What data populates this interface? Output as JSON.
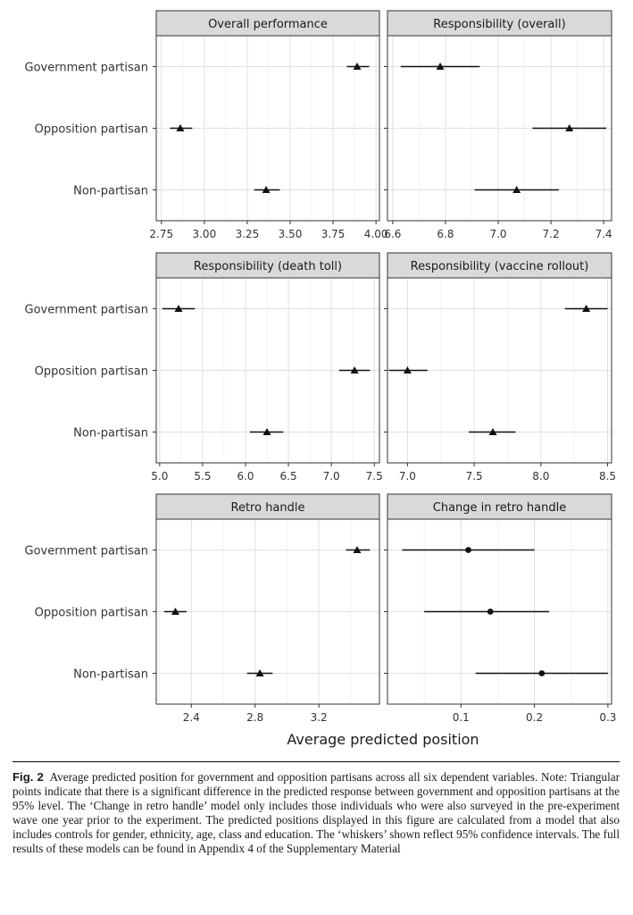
{
  "chart_data": {
    "type": "dotplot",
    "categories": [
      "Government partisan",
      "Opposition partisan",
      "Non-partisan"
    ],
    "x_axis_title": "Average predicted position",
    "marker_legend": {
      "triangle": "significant difference at 95% level",
      "circle": "not significant"
    },
    "facets": [
      {
        "title": "Overall performance",
        "xlim": [
          2.72,
          4.02
        ],
        "ticks": [
          2.75,
          3.0,
          3.25,
          3.5,
          3.75,
          4.0
        ],
        "tick_labels": [
          "2.75",
          "3.00",
          "3.25",
          "3.50",
          "3.75",
          "4.00"
        ],
        "points": [
          {
            "category": "Government partisan",
            "estimate": 3.89,
            "lower": 3.83,
            "upper": 3.96,
            "marker": "triangle"
          },
          {
            "category": "Opposition partisan",
            "estimate": 2.86,
            "lower": 2.8,
            "upper": 2.93,
            "marker": "triangle"
          },
          {
            "category": "Non-partisan",
            "estimate": 3.36,
            "lower": 3.29,
            "upper": 3.44,
            "marker": "triangle"
          }
        ]
      },
      {
        "title": "Responsibility (overall)",
        "xlim": [
          6.58,
          7.43
        ],
        "ticks": [
          6.6,
          6.8,
          7.0,
          7.2,
          7.4
        ],
        "tick_labels": [
          "6.6",
          "6.8",
          "7.0",
          "7.2",
          "7.4"
        ],
        "points": [
          {
            "category": "Government partisan",
            "estimate": 6.78,
            "lower": 6.63,
            "upper": 6.93,
            "marker": "triangle"
          },
          {
            "category": "Opposition partisan",
            "estimate": 7.27,
            "lower": 7.13,
            "upper": 7.41,
            "marker": "triangle"
          },
          {
            "category": "Non-partisan",
            "estimate": 7.07,
            "lower": 6.91,
            "upper": 7.23,
            "marker": "triangle"
          }
        ]
      },
      {
        "title": "Responsibility (death toll)",
        "xlim": [
          4.96,
          7.56
        ],
        "ticks": [
          5.0,
          5.5,
          6.0,
          6.5,
          7.0,
          7.5
        ],
        "tick_labels": [
          "5.0",
          "5.5",
          "6.0",
          "6.5",
          "7.0",
          "7.5"
        ],
        "points": [
          {
            "category": "Government partisan",
            "estimate": 5.22,
            "lower": 5.03,
            "upper": 5.41,
            "marker": "triangle"
          },
          {
            "category": "Opposition partisan",
            "estimate": 7.27,
            "lower": 7.09,
            "upper": 7.45,
            "marker": "triangle"
          },
          {
            "category": "Non-partisan",
            "estimate": 6.25,
            "lower": 6.05,
            "upper": 6.44,
            "marker": "triangle"
          }
        ]
      },
      {
        "title": "Responsibility (vaccine rollout)",
        "xlim": [
          6.85,
          8.53
        ],
        "ticks": [
          7.0,
          7.5,
          8.0,
          8.5
        ],
        "tick_labels": [
          "7.0",
          "7.5",
          "8.0",
          "8.5"
        ],
        "points": [
          {
            "category": "Government partisan",
            "estimate": 8.34,
            "lower": 8.18,
            "upper": 8.5,
            "marker": "triangle"
          },
          {
            "category": "Opposition partisan",
            "estimate": 7.0,
            "lower": 6.86,
            "upper": 7.15,
            "marker": "triangle"
          },
          {
            "category": "Non-partisan",
            "estimate": 7.64,
            "lower": 7.46,
            "upper": 7.81,
            "marker": "triangle"
          }
        ]
      },
      {
        "title": "Retro handle",
        "xlim": [
          2.18,
          3.58
        ],
        "ticks": [
          2.4,
          2.8,
          3.2
        ],
        "tick_labels": [
          "2.4",
          "2.8",
          "3.2"
        ],
        "points": [
          {
            "category": "Government partisan",
            "estimate": 3.44,
            "lower": 3.37,
            "upper": 3.52,
            "marker": "triangle"
          },
          {
            "category": "Opposition partisan",
            "estimate": 2.3,
            "lower": 2.23,
            "upper": 2.37,
            "marker": "triangle"
          },
          {
            "category": "Non-partisan",
            "estimate": 2.83,
            "lower": 2.75,
            "upper": 2.91,
            "marker": "triangle"
          }
        ]
      },
      {
        "title": "Change in retro handle",
        "xlim": [
          0.0,
          0.305
        ],
        "ticks": [
          0.1,
          0.2,
          0.3
        ],
        "tick_labels": [
          "0.1",
          "0.2",
          "0.3"
        ],
        "points": [
          {
            "category": "Government partisan",
            "estimate": 0.11,
            "lower": 0.02,
            "upper": 0.2,
            "marker": "circle"
          },
          {
            "category": "Opposition partisan",
            "estimate": 0.14,
            "lower": 0.05,
            "upper": 0.22,
            "marker": "circle"
          },
          {
            "category": "Non-partisan",
            "estimate": 0.21,
            "lower": 0.12,
            "upper": 0.3,
            "marker": "circle"
          }
        ]
      }
    ]
  },
  "caption": {
    "label": "Fig. 2",
    "text": "Average predicted position for government and opposition partisans across all six dependent variables. Note: Triangular points indicate that there is a significant difference in the predicted response between government and opposition partisans at the 95% level. The ‘Change in retro handle’ model only includes those individuals who were also surveyed in the pre-experiment wave one year prior to the experiment. The predicted positions displayed in this figure are calculated from a model that also includes controls for gender, ethnicity, age, class and education. The ‘whiskers’ shown reflect 95% confidence intervals. The full results of these models can be found in Appendix 4 of the Supplementary Material"
  }
}
